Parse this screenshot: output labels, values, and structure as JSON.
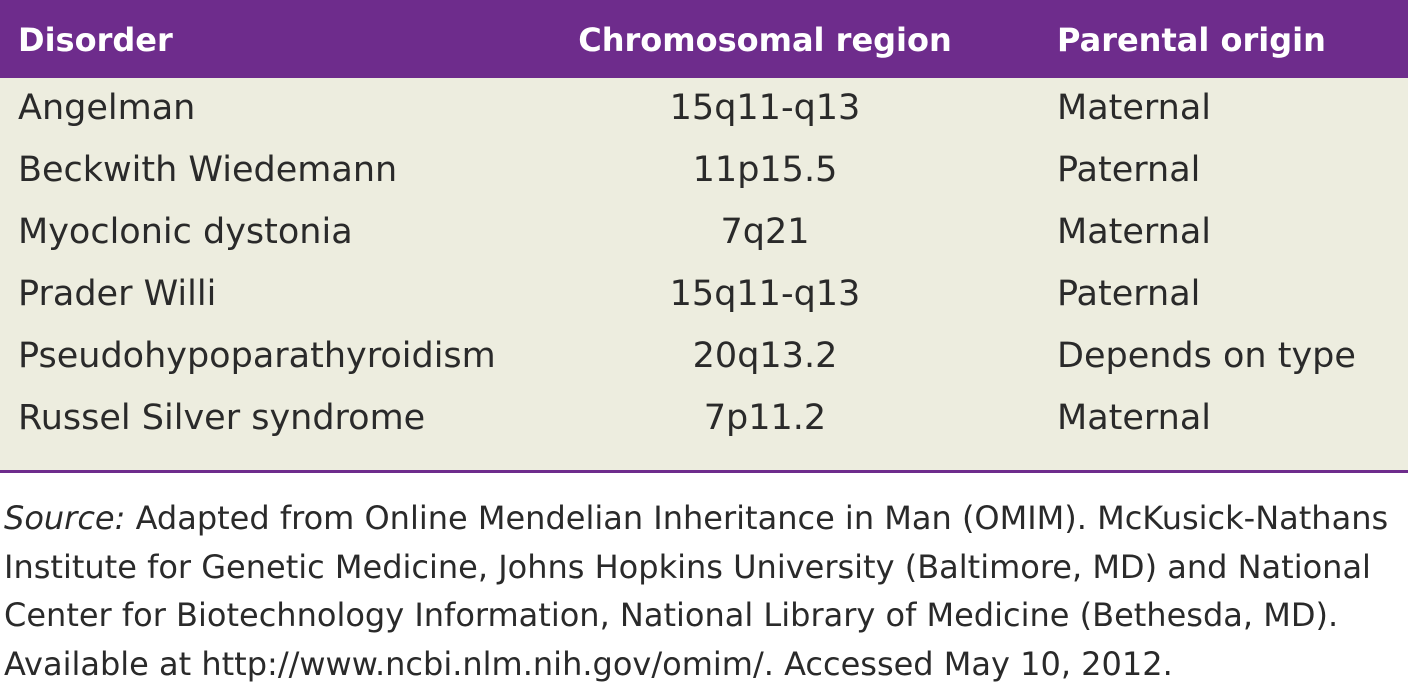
{
  "table": {
    "headers": [
      "Disorder",
      "Chromosomal region",
      "Parental origin"
    ],
    "rows": [
      [
        "Angelman",
        "15q11-q13",
        "Maternal"
      ],
      [
        "Beckwith Wiedemann",
        "11p15.5",
        "Paternal"
      ],
      [
        "Myoclonic dystonia",
        "7q21",
        "Maternal"
      ],
      [
        "Prader Willi",
        "15q11-q13",
        "Paternal"
      ],
      [
        "Pseudohypoparathyroidism",
        "20q13.2",
        "Depends on type"
      ],
      [
        "Russel Silver syndrome",
        "7p11.2",
        "Maternal"
      ]
    ]
  },
  "source": {
    "label": "Source:",
    "lines": [
      " Adapted from Online Mendelian Inheritance in Man (OMIM). McKusick-Nathans",
      "Institute for Genetic Medicine, Johns Hopkins University (Baltimore, MD) and National",
      "Center for Biotechnology Information, National Library of Medicine (Bethesda, MD).",
      "Available at http://www.ncbi.nlm.nih.gov/omim/. Accessed May 10, 2012."
    ]
  },
  "colors": {
    "header_bg": "#6e2c8c",
    "body_bg": "#ededdf",
    "text": "#2a2a2a"
  }
}
